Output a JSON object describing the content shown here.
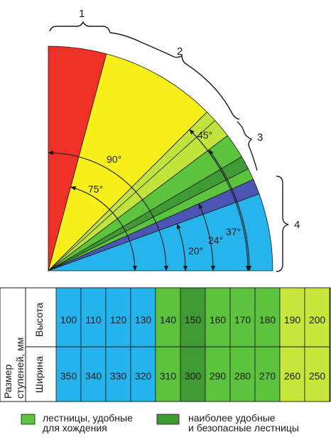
{
  "diagram": {
    "zone_numbers": [
      "1",
      "2",
      "3",
      "4"
    ],
    "angle_labels": [
      "90°",
      "75°",
      "45°",
      "37°",
      "24°",
      "20°"
    ],
    "colors": {
      "red": "#ee3124",
      "yellow": "#f7f01a",
      "light_green": "#c2e33c",
      "green": "#5cc43c",
      "dark_green": "#3f9a33",
      "blue_violet": "#4b55b3",
      "sky_blue": "#26b4ec"
    }
  },
  "table": {
    "row_header_size": "Размер\nступеней, мм",
    "row_header_height": "Высота",
    "row_header_width": "Ширина",
    "height_values": [
      "100",
      "110",
      "120",
      "130",
      "140",
      "150",
      "160",
      "170",
      "180",
      "190",
      "200"
    ],
    "width_values": [
      "350",
      "340",
      "330",
      "320",
      "310",
      "300",
      "290",
      "280",
      "270",
      "260",
      "250"
    ],
    "column_colors": [
      "#24b3ec",
      "#24b3ec",
      "#24b3ec",
      "#24b3ec",
      "#5cc43c",
      "#3f9a33",
      "#5cc43c",
      "#5cc43c",
      "#5cc43c",
      "#c7e53a",
      "#c7e53a"
    ]
  },
  "legend": {
    "items": [
      {
        "label": "лестницы, удобные\nдля хождения",
        "color": "#5cc43c"
      },
      {
        "label": "наиболее удобные\nи безопасные лестницы",
        "color": "#3f9a33"
      }
    ]
  }
}
